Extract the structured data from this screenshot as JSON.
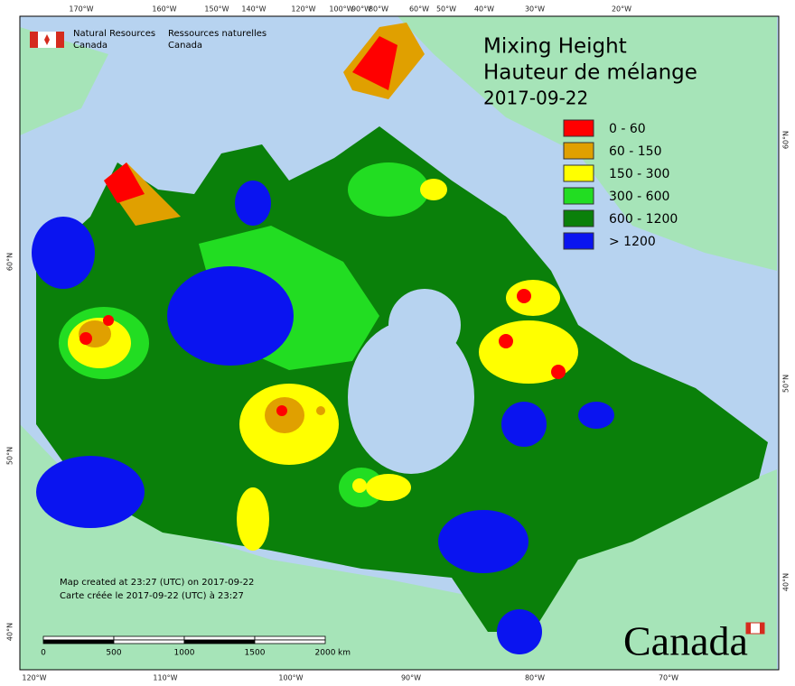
{
  "header": {
    "agency_en": [
      "Natural Resources",
      "Canada"
    ],
    "agency_fr": [
      "Ressources naturelles",
      "Canada"
    ]
  },
  "title": [
    "Mixing Height",
    "Hauteur de mélange",
    "2017-09-22"
  ],
  "legend": [
    {
      "label": "0 - 60",
      "color": "#ff0000"
    },
    {
      "label": "60 - 150",
      "color": "#e0a000"
    },
    {
      "label": "150 - 300",
      "color": "#ffff00"
    },
    {
      "label": "300 - 600",
      "color": "#22dd22"
    },
    {
      "label": "600 - 1200",
      "color": "#0a800a"
    },
    {
      "label": "> 1200",
      "color": "#0a14f0"
    }
  ],
  "notes": [
    "Map created at 23:27 (UTC) on 2017-09-22",
    "Carte créée le 2017-09-22 (UTC) à 23:27"
  ],
  "scale_bar": {
    "labels": [
      "0",
      "500",
      "1000",
      "1500",
      "2000"
    ],
    "unit": "km"
  },
  "graticule": {
    "top": [
      "170°W",
      "160°W",
      "150°W",
      "140°W",
      "120°W",
      "100°W",
      "90°W",
      "80°W",
      "60°W",
      "50°W",
      "40°W",
      "30°W",
      "20°W"
    ],
    "bottom": [
      "120°W",
      "110°W",
      "100°W",
      "90°W",
      "80°W",
      "70°W"
    ],
    "left": [
      "60°N",
      "50°N",
      "40°N"
    ],
    "right": [
      "60°N",
      "50°N",
      "40°N"
    ]
  },
  "wordmark": "Canada"
}
